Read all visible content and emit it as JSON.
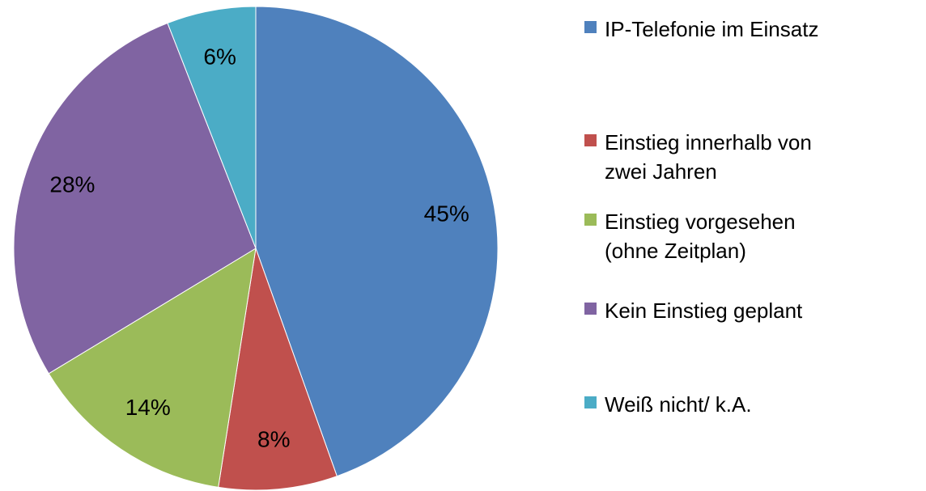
{
  "chart_data": {
    "type": "pie",
    "categories": [
      "IP-Telefonie im Einsatz",
      "Einstieg innerhalb von zwei Jahren",
      "Einstieg vorgesehen (ohne Zeitplan)",
      "Kein Einstieg geplant",
      "Weiß nicht/ k.A."
    ],
    "values": [
      45,
      8,
      14,
      28,
      6
    ],
    "value_labels": [
      "45%",
      "8%",
      "14%",
      "28%",
      "6%"
    ],
    "colors": [
      "#4f81bd",
      "#c0504d",
      "#9bbb59",
      "#8064a2",
      "#4bacc6"
    ],
    "legend": "right"
  }
}
